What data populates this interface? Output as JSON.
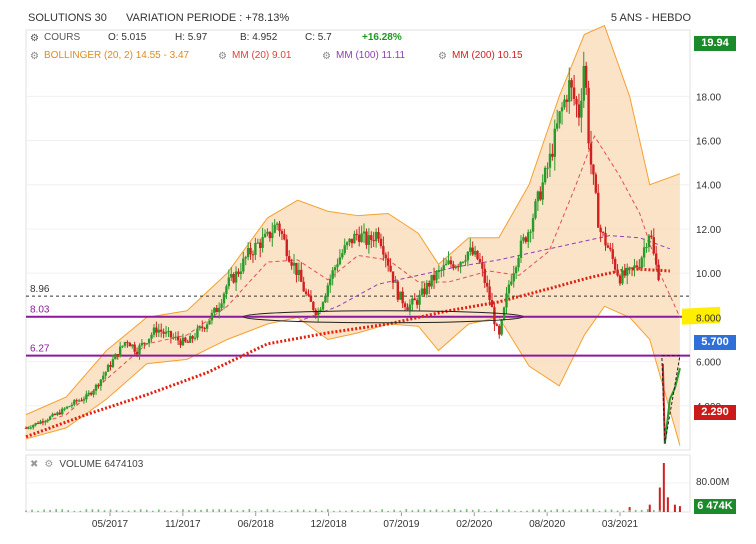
{
  "header": {
    "title": "SOLUTIONS 30",
    "variation": "VARIATION PERIODE : +78.13%",
    "period": "5 ANS - HEBDO"
  },
  "legend": {
    "cours_label": "COURS",
    "open": "O: 5.015",
    "high": "H: 5.97",
    "low": "B: 4.952",
    "close": "C: 5.7",
    "change": "+16.28%",
    "bollinger": "BOLLINGER (20, 2) 14.55 - 3.47",
    "mm20": "MM (20) 9.01",
    "mm100": "MM (100) 11.11",
    "mm200": "MM (200) 10.15"
  },
  "badges": {
    "high": "19.94",
    "last": "5.700",
    "low": "2.290",
    "volume": "6 474K"
  },
  "volume_legend": "VOLUME 6474103",
  "colors": {
    "up": "#2a9a2a",
    "down": "#d02020",
    "bollinger_fill": "#f9d9b6",
    "bollinger_line": "#f5a030",
    "mm20": "#e05050",
    "mm100": "#9040b0",
    "mm200": "#e02010",
    "level_line": "#8a1a9a",
    "badge_green": "#1b8a2a",
    "badge_blue": "#2f6fd8",
    "badge_red": "#cc1a1a",
    "highlight": "#ffee00"
  },
  "chart_data": {
    "type": "candlestick",
    "yaxis": {
      "min": 2,
      "max": 21,
      "ticks": [
        "4.000",
        "6.000",
        "8.000",
        "10.00",
        "12.00",
        "14.00",
        "16.00",
        "18.00"
      ]
    },
    "volume_axis": {
      "ticks": [
        "80.00M"
      ]
    },
    "xlabels": [
      "05/2017",
      "11/2017",
      "06/2018",
      "12/2018",
      "07/2019",
      "02/2020",
      "08/2020",
      "03/2021"
    ],
    "levels": [
      {
        "label": "8.96",
        "value": 8.96,
        "style": "dashed"
      },
      {
        "label": "8.03",
        "value": 8.03,
        "style": "solid"
      },
      {
        "label": "6.27",
        "value": 6.27,
        "style": "solid"
      }
    ],
    "price_path": [
      [
        0,
        3.0
      ],
      [
        10,
        3.2
      ],
      [
        20,
        3.4
      ],
      [
        30,
        3.6
      ],
      [
        40,
        3.9
      ],
      [
        50,
        4.2
      ],
      [
        60,
        4.4
      ],
      [
        70,
        4.9
      ],
      [
        80,
        5.6
      ],
      [
        90,
        6.3
      ],
      [
        100,
        7.0
      ],
      [
        110,
        6.5
      ],
      [
        120,
        7.0
      ],
      [
        130,
        7.5
      ],
      [
        140,
        7.2
      ],
      [
        150,
        7.0
      ],
      [
        160,
        6.8
      ],
      [
        170,
        7.3
      ],
      [
        180,
        7.8
      ],
      [
        190,
        8.4
      ],
      [
        200,
        9.5
      ],
      [
        210,
        10.0
      ],
      [
        220,
        10.8
      ],
      [
        230,
        11.3
      ],
      [
        240,
        11.6
      ],
      [
        250,
        12.3
      ],
      [
        260,
        11.0
      ],
      [
        270,
        10.0
      ],
      [
        280,
        8.8
      ],
      [
        290,
        8.2
      ],
      [
        300,
        9.5
      ],
      [
        310,
        10.6
      ],
      [
        320,
        11.3
      ],
      [
        330,
        11.8
      ],
      [
        340,
        11.4
      ],
      [
        350,
        11.9
      ],
      [
        360,
        10.5
      ],
      [
        370,
        9.0
      ],
      [
        380,
        8.5
      ],
      [
        390,
        8.8
      ],
      [
        400,
        9.5
      ],
      [
        410,
        10.0
      ],
      [
        420,
        10.4
      ],
      [
        430,
        10.5
      ],
      [
        440,
        11.0
      ],
      [
        450,
        10.6
      ],
      [
        460,
        9.0
      ],
      [
        470,
        7.0
      ],
      [
        480,
        9.5
      ],
      [
        490,
        11.0
      ],
      [
        500,
        12.0
      ],
      [
        510,
        13.5
      ],
      [
        520,
        15.0
      ],
      [
        530,
        17.0
      ],
      [
        540,
        18.5
      ],
      [
        550,
        17.2
      ],
      [
        555,
        19.8
      ],
      [
        560,
        15.5
      ],
      [
        570,
        12.0
      ],
      [
        580,
        11.0
      ],
      [
        590,
        9.8
      ],
      [
        600,
        10.0
      ],
      [
        610,
        10.5
      ],
      [
        620,
        12.0
      ],
      [
        625,
        10.5
      ],
      [
        630,
        9.8
      ]
    ],
    "crash_path": [
      [
        633,
        5.9
      ],
      [
        635,
        2.29
      ],
      [
        640,
        4.3
      ],
      [
        645,
        4.8
      ],
      [
        650,
        5.7
      ]
    ],
    "bollinger": {
      "upper": [
        [
          0,
          3.6
        ],
        [
          40,
          4.4
        ],
        [
          80,
          6.5
        ],
        [
          120,
          8.0
        ],
        [
          160,
          8.3
        ],
        [
          200,
          10.0
        ],
        [
          240,
          12.5
        ],
        [
          270,
          13.3
        ],
        [
          300,
          12.8
        ],
        [
          330,
          12.6
        ],
        [
          360,
          12.7
        ],
        [
          390,
          11.8
        ],
        [
          410,
          10.4
        ],
        [
          440,
          11.6
        ],
        [
          470,
          11.6
        ],
        [
          500,
          14.0
        ],
        [
          530,
          18.0
        ],
        [
          555,
          20.8
        ],
        [
          575,
          21.2
        ],
        [
          600,
          18.0
        ],
        [
          620,
          14.0
        ],
        [
          650,
          14.5
        ]
      ],
      "lower": [
        [
          0,
          2.5
        ],
        [
          40,
          3.0
        ],
        [
          80,
          4.3
        ],
        [
          120,
          5.9
        ],
        [
          160,
          6.1
        ],
        [
          200,
          7.0
        ],
        [
          240,
          7.7
        ],
        [
          270,
          8.0
        ],
        [
          300,
          7.0
        ],
        [
          330,
          7.3
        ],
        [
          360,
          7.7
        ],
        [
          390,
          7.6
        ],
        [
          410,
          6.5
        ],
        [
          440,
          7.7
        ],
        [
          470,
          8.0
        ],
        [
          500,
          5.8
        ],
        [
          530,
          4.9
        ],
        [
          555,
          7.2
        ],
        [
          575,
          8.5
        ],
        [
          600,
          8.0
        ],
        [
          620,
          7.0
        ],
        [
          650,
          2.2
        ]
      ]
    },
    "mm20": [
      [
        0,
        3.0
      ],
      [
        40,
        3.6
      ],
      [
        80,
        5.2
      ],
      [
        120,
        6.8
      ],
      [
        160,
        7.2
      ],
      [
        200,
        8.5
      ],
      [
        240,
        10.5
      ],
      [
        270,
        10.6
      ],
      [
        300,
        9.7
      ],
      [
        330,
        10.8
      ],
      [
        360,
        10.6
      ],
      [
        390,
        9.6
      ],
      [
        420,
        9.6
      ],
      [
        460,
        10.1
      ],
      [
        490,
        9.9
      ],
      [
        520,
        11.0
      ],
      [
        545,
        13.8
      ],
      [
        565,
        16.2
      ],
      [
        590,
        14.4
      ],
      [
        610,
        12.7
      ],
      [
        630,
        10.0
      ],
      [
        650,
        8.0
      ]
    ],
    "mm100": [
      [
        270,
        7.8
      ],
      [
        310,
        8.5
      ],
      [
        350,
        9.5
      ],
      [
        390,
        9.9
      ],
      [
        430,
        10.3
      ],
      [
        470,
        10.6
      ],
      [
        510,
        11.0
      ],
      [
        550,
        11.4
      ],
      [
        580,
        11.7
      ],
      [
        610,
        11.6
      ],
      [
        640,
        11.1
      ]
    ],
    "mm200": [
      [
        0,
        2.6
      ],
      [
        60,
        3.6
      ],
      [
        120,
        4.5
      ],
      [
        180,
        5.5
      ],
      [
        240,
        6.8
      ],
      [
        300,
        7.3
      ],
      [
        360,
        7.7
      ],
      [
        420,
        8.3
      ],
      [
        470,
        8.7
      ],
      [
        520,
        9.3
      ],
      [
        560,
        9.8
      ],
      [
        600,
        10.2
      ],
      [
        640,
        10.1
      ]
    ],
    "volume": [
      [
        600,
        0.1
      ],
      [
        620,
        0.15
      ],
      [
        630,
        0.5
      ],
      [
        634,
        1.0
      ],
      [
        638,
        0.3
      ],
      [
        645,
        0.15
      ],
      [
        650,
        0.12
      ]
    ]
  }
}
